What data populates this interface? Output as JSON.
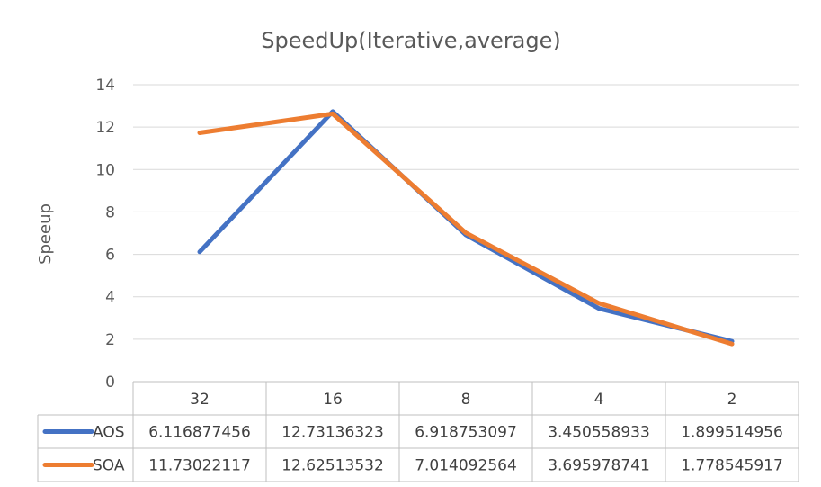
{
  "chart_data": {
    "type": "line",
    "title": "SpeedUp(Iterative,average)",
    "xlabel": "",
    "ylabel": "Speeup",
    "ylim": [
      0,
      14
    ],
    "yticks": [
      0,
      2,
      4,
      6,
      8,
      10,
      12,
      14
    ],
    "grid": true,
    "legend": "data-table",
    "categories": [
      "32",
      "16",
      "8",
      "4",
      "2"
    ],
    "series": [
      {
        "name": "AOS",
        "color": "#4472C4",
        "values": [
          6.116877456,
          12.73136323,
          6.918753097,
          3.450558933,
          1.899514956
        ],
        "labels": [
          "6.116877456",
          "12.73136323",
          "6.918753097",
          "3.450558933",
          "1.899514956"
        ]
      },
      {
        "name": "SOA",
        "color": "#ED7D31",
        "values": [
          11.73022117,
          12.62513532,
          7.014092564,
          3.695978741,
          1.778545917
        ],
        "labels": [
          "11.73022117",
          "12.62513532",
          "7.014092564",
          "3.695978741",
          "1.778545917"
        ]
      }
    ]
  }
}
